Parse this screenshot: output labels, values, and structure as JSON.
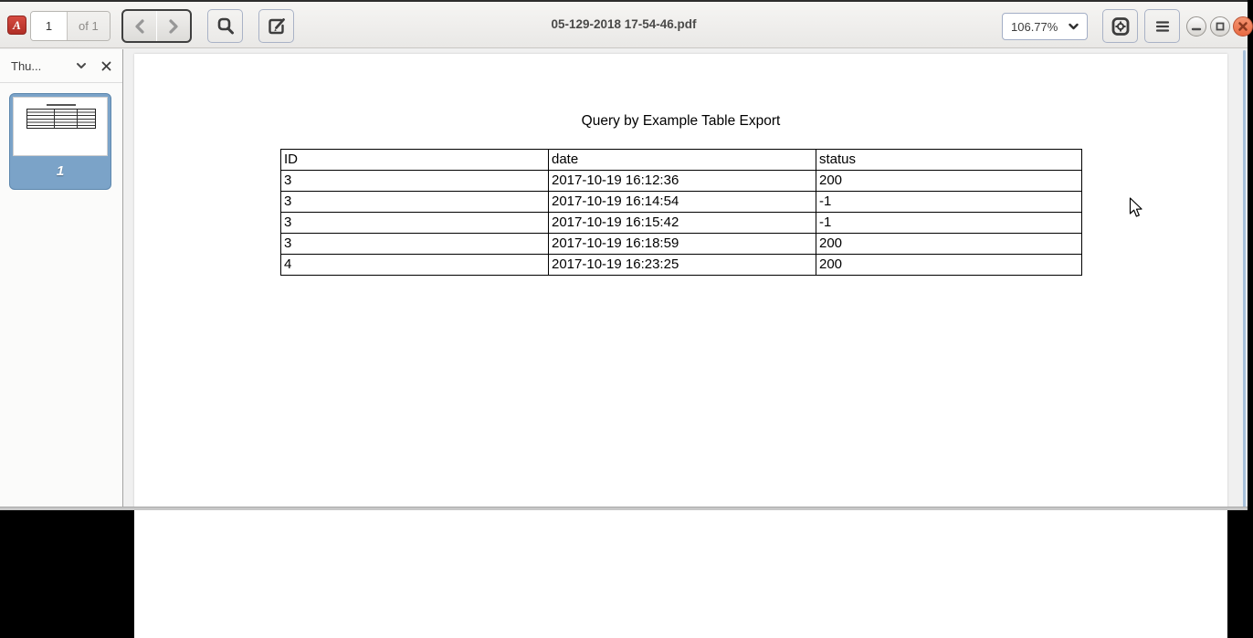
{
  "window": {
    "title": "05-129-2018 17-54-46.pdf",
    "controls": {
      "minimize_icon": "minus",
      "maximize_icon": "square",
      "close_icon": "cross"
    }
  },
  "toolbar": {
    "page_number": "1",
    "page_count_label": "of 1",
    "zoom_level": "106.77%",
    "icons": {
      "pdf_logo": "A",
      "prev": "chevron-left",
      "next": "chevron-right",
      "search": "magnifier",
      "annotate": "square-pencil",
      "options": "gear-in-square",
      "menu": "hamburger"
    }
  },
  "sidebar": {
    "panel_title": "Thu...",
    "panel_dropdown_icon": "chevron-down",
    "panel_close_icon": "cross",
    "thumbnail": {
      "page_label": "1",
      "selected": true
    }
  },
  "pdf": {
    "title": "Query by Example Table Export",
    "table": {
      "headers": [
        "ID",
        "date",
        "status"
      ],
      "rows": [
        [
          "3",
          "2017-10-19 16:12:36",
          "200"
        ],
        [
          "3",
          "2017-10-19 16:14:54",
          "-1"
        ],
        [
          "3",
          "2017-10-19 16:15:42",
          "-1"
        ],
        [
          "3",
          "2017-10-19 16:18:59",
          "200"
        ],
        [
          "4",
          "2017-10-19 16:23:25",
          "200"
        ]
      ]
    }
  },
  "colors": {
    "close_button": "#e96a42",
    "close_button_light": "#f49572",
    "selected_thumbnail": "#7ba3c8",
    "scrollbar": "#a7c0da",
    "toolbar_top": "#f6f5f3",
    "toolbar_bottom": "#e9e8e6"
  }
}
